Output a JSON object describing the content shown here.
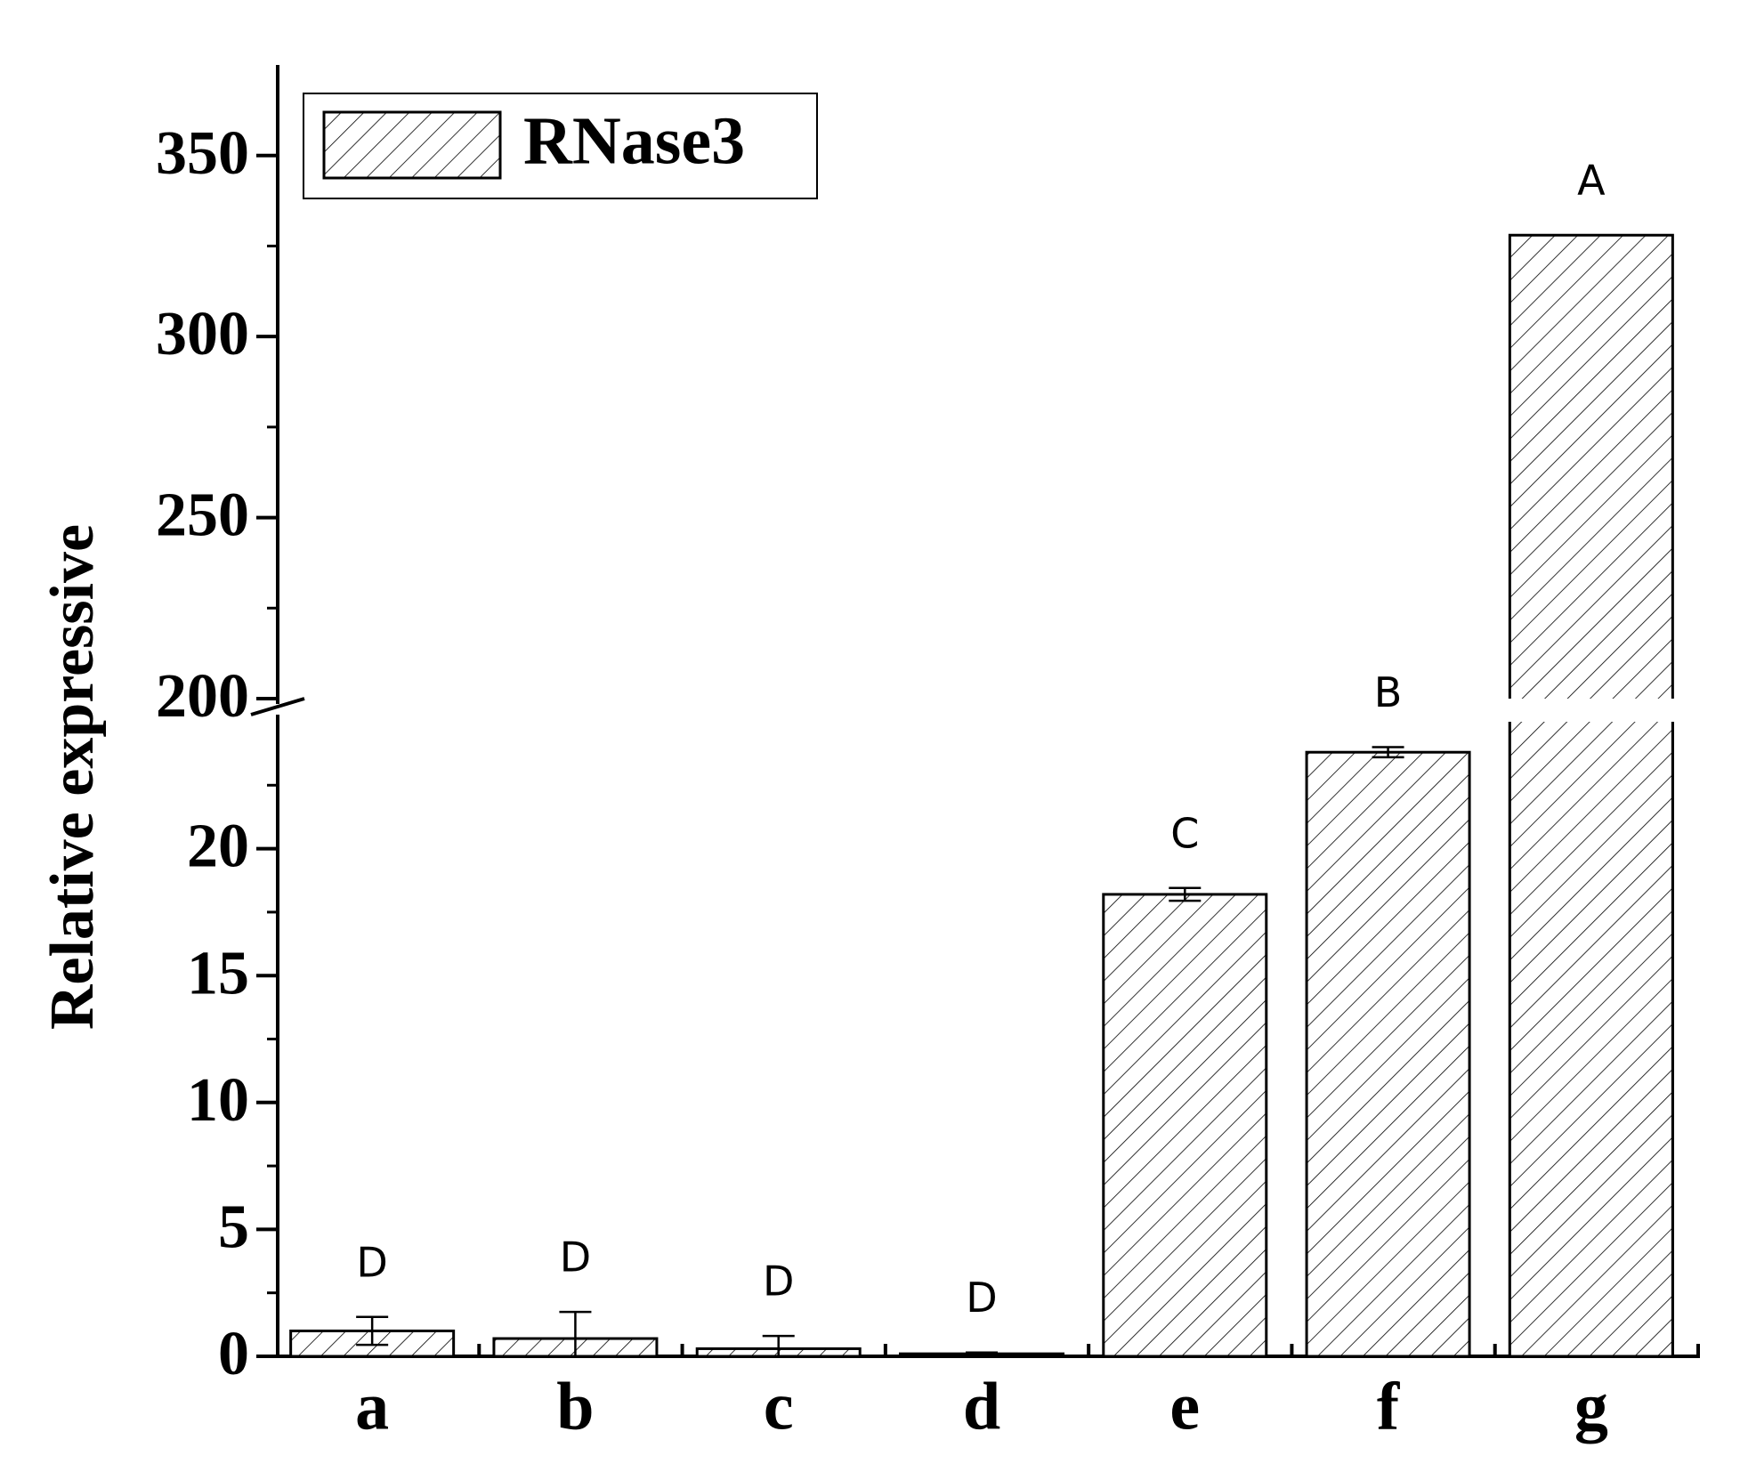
{
  "chart_data": {
    "type": "bar",
    "y_label": "Relative expressive",
    "categories": [
      "a",
      "b",
      "c",
      "d",
      "e",
      "f",
      "g"
    ],
    "series": [
      {
        "name": "RNase3",
        "color": "#000000",
        "values": [
          1.0,
          0.7,
          0.3,
          0.1,
          18.2,
          23.8,
          328
        ],
        "errors": [
          0.55,
          1.05,
          0.5,
          0.05,
          0.25,
          0.2,
          0
        ]
      }
    ],
    "annotations": [
      "D",
      "D",
      "D",
      "D",
      "C",
      "B",
      "A"
    ],
    "ylim": [
      0,
      375
    ],
    "y_break": [
      25,
      200
    ],
    "yticks": [
      0,
      5,
      10,
      15,
      20,
      200,
      250,
      300,
      350
    ],
    "hatch": true,
    "legend": "upper left"
  }
}
